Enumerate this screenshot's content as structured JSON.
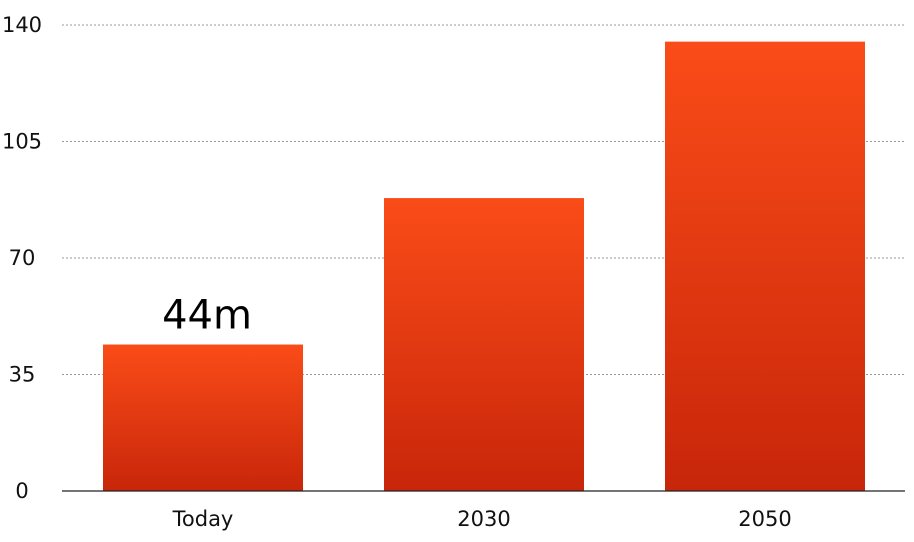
{
  "chart_data": {
    "type": "bar",
    "categories": [
      "Today",
      "2030",
      "2050"
    ],
    "values": [
      44,
      88,
      135
    ],
    "data_labels": [
      "44m",
      "",
      ""
    ],
    "title": "",
    "xlabel": "",
    "ylabel": "",
    "ylim": [
      0,
      140
    ],
    "yticks": [
      0,
      35,
      70,
      105,
      140
    ],
    "grid": true,
    "legend": "none",
    "colors": {
      "bar_top": "#fa4c18",
      "bar_bottom": "#c8260a",
      "grid": "#9a9a9a",
      "axis": "#222222"
    }
  }
}
